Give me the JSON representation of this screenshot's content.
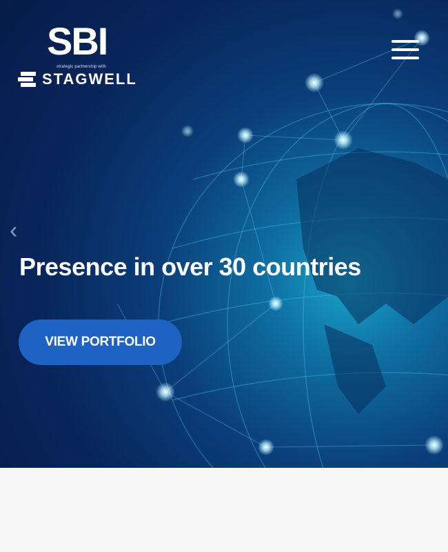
{
  "header": {
    "logo_main": "SBI",
    "logo_tagline": "strategic partnership with",
    "logo_partner": "STAGWELL",
    "menu_icon": "hamburger-icon"
  },
  "slider": {
    "prev_icon": "chevron-left-icon",
    "headline": "Presence in over 30 countries",
    "cta_label": "VIEW PORTFOLIO"
  },
  "colors": {
    "button": "#1e63c3",
    "hero_dark": "#071c4a",
    "hero_glow": "#1aa3c7"
  }
}
